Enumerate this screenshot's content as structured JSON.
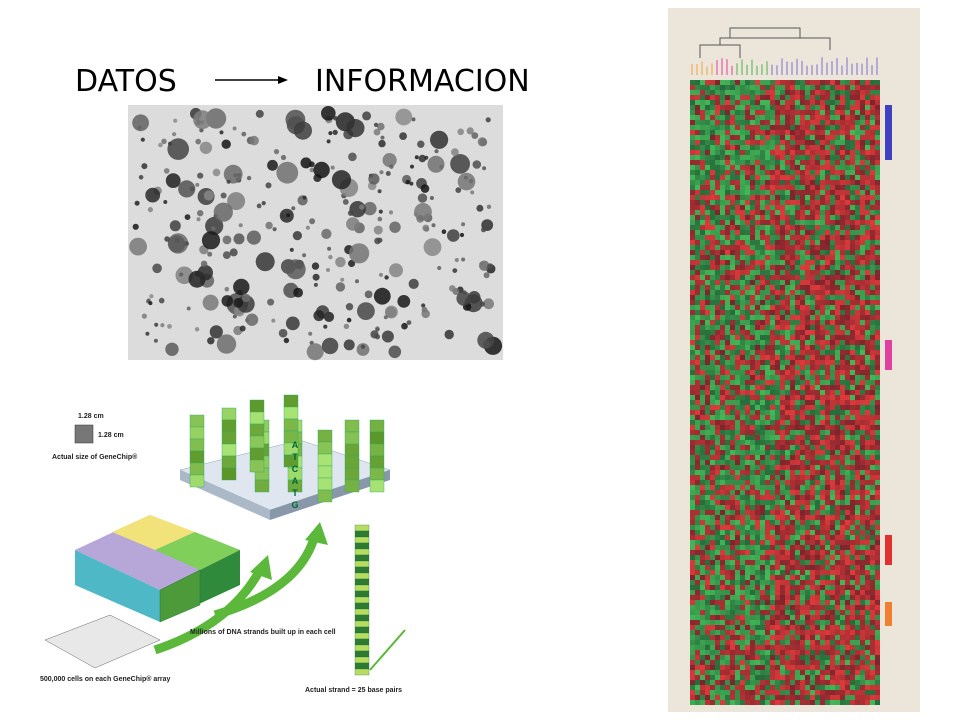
{
  "header": {
    "left": "DATOS",
    "right": "INFORMACION"
  },
  "genechip": {
    "size_width": "1.28 cm",
    "size_height": "1.28 cm",
    "size_caption": "Actual size of GeneChip®",
    "cells_caption": "500,000 cells on each GeneChip® array",
    "strands_caption": "Millions of DNA strands built up in each cell",
    "strand_caption": "Actual strand = 25 base pairs",
    "strand_letters": [
      "A",
      "T",
      "C",
      "A",
      "T",
      "G"
    ]
  }
}
